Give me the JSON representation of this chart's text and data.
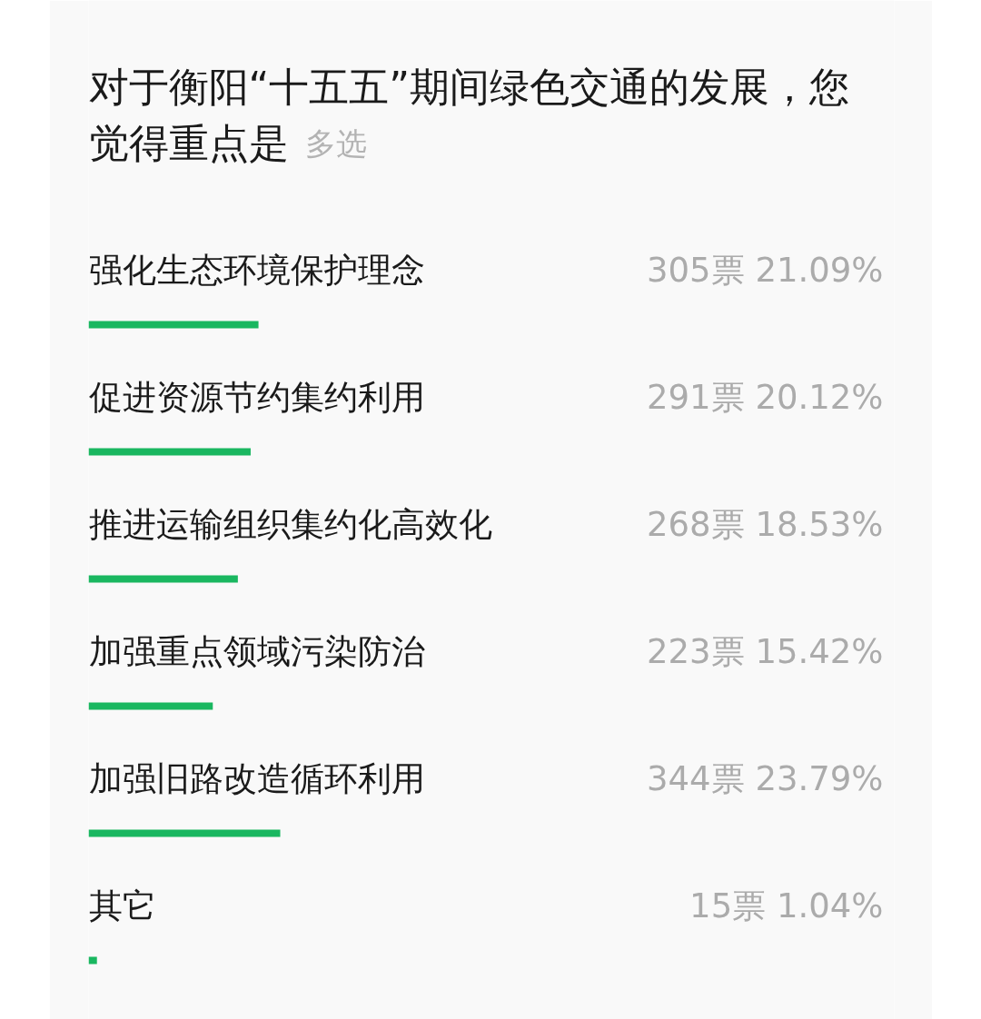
{
  "chart_data": {
    "type": "bar",
    "orientation": "horizontal",
    "title": "对于衡阳“十五五”期间绿色交通的发展，您觉得重点是",
    "subtitle": "多选",
    "categories": [
      "强化生态环境保护理念",
      "促进资源节约集约利用",
      "推进运输组织集约化高效化",
      "加强重点领域污染防治",
      "加强旧路改造循环利用",
      "其它"
    ],
    "values": [
      21.09,
      20.12,
      18.53,
      15.42,
      23.79,
      1.04
    ],
    "value_labels": [
      "305票 21.09%",
      "291票 20.12%",
      "268票 18.53%",
      "223票 15.42%",
      "344票 23.79%",
      "15票 1.04%"
    ],
    "color": "#1ab760",
    "xlim": [
      0,
      100
    ],
    "tick_labels": false,
    "grid": false
  }
}
